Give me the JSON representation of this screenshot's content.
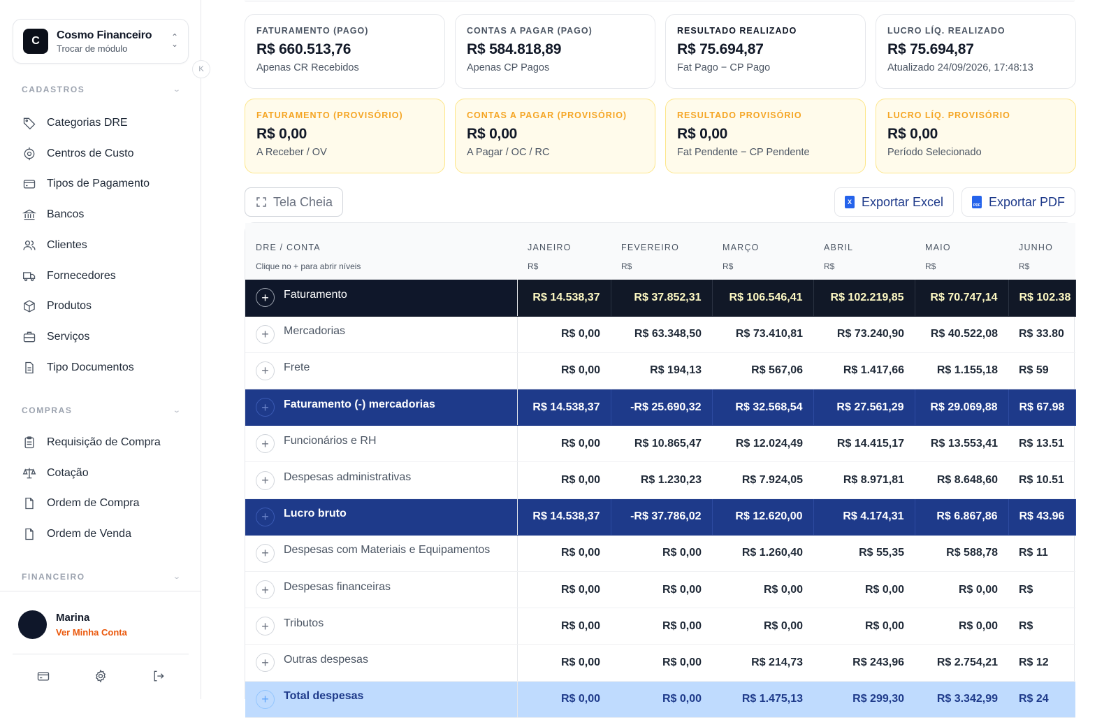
{
  "app": {
    "logo_letter": "C",
    "name": "Cosmo Financeiro",
    "subtitle": "Trocar de módulo",
    "collapse_glyph": "K"
  },
  "sidebar": {
    "sections": [
      {
        "title": "CADASTROS",
        "items": [
          {
            "label": "Categorias DRE",
            "icon": "tag-icon"
          },
          {
            "label": "Centros de Custo",
            "icon": "target-icon"
          },
          {
            "label": "Tipos de Pagamento",
            "icon": "credit-card-icon"
          },
          {
            "label": "Bancos",
            "icon": "bank-icon"
          },
          {
            "label": "Clientes",
            "icon": "users-icon"
          },
          {
            "label": "Fornecedores",
            "icon": "truck-icon"
          },
          {
            "label": "Produtos",
            "icon": "box-icon"
          },
          {
            "label": "Serviços",
            "icon": "briefcase-icon"
          },
          {
            "label": "Tipo Documentos",
            "icon": "document-icon"
          }
        ]
      },
      {
        "title": "COMPRAS",
        "items": [
          {
            "label": "Requisição de Compra",
            "icon": "clipboard-icon"
          },
          {
            "label": "Cotação",
            "icon": "scale-icon"
          },
          {
            "label": "Ordem de Compra",
            "icon": "file-icon"
          },
          {
            "label": "Ordem de Venda",
            "icon": "file-icon"
          }
        ]
      },
      {
        "title": "FINANCEIRO",
        "items": []
      }
    ]
  },
  "user": {
    "name": "Marina",
    "link": "Ver Minha Conta"
  },
  "cards": [
    {
      "label": "FATURAMENTO (PAGO)",
      "value": "R$ 660.513,76",
      "sub": "Apenas CR Recebidos"
    },
    {
      "label": "CONTAS A PAGAR (PAGO)",
      "value": "R$ 584.818,89",
      "sub": "Apenas CP Pagos"
    },
    {
      "label": "RESULTADO REALIZADO",
      "value": "R$ 75.694,87",
      "sub": "Fat Pago − CP Pago"
    },
    {
      "label": "LUCRO LÍQ. REALIZADO",
      "value": "R$ 75.694,87",
      "sub": "Atualizado 24/09/2026, 17:48:13"
    },
    {
      "label": "FATURAMENTO (PROVISÓRIO)",
      "value": "R$ 0,00",
      "sub": "A Receber / OV"
    },
    {
      "label": "CONTAS A PAGAR (PROVISÓRIO)",
      "value": "R$ 0,00",
      "sub": "A Pagar / OC / RC"
    },
    {
      "label": "RESULTADO PROVISÓRIO",
      "value": "R$ 0,00",
      "sub": "Fat Pendente − CP Pendente"
    },
    {
      "label": "LUCRO LÍQ. PROVISÓRIO",
      "value": "R$ 0,00",
      "sub": "Período Selecionado"
    }
  ],
  "toolbar": {
    "fullscreen": "Tela Cheia",
    "export_excel": "Exportar Excel",
    "export_pdf": "Exportar PDF",
    "excel_glyph": "X",
    "pdf_glyph": "PDF"
  },
  "table": {
    "header": {
      "first": "DRE / CONTA",
      "first_sub": "Clique no + para abrir níveis",
      "currency": "R$"
    },
    "months": [
      "JANEIRO",
      "FEVEREIRO",
      "MARÇO",
      "ABRIL",
      "MAIO",
      "JUNHO"
    ],
    "rows": [
      {
        "label": "Faturamento",
        "style": "dark",
        "values": [
          "R$ 14.538,37",
          "R$ 37.852,31",
          "R$ 106.546,41",
          "R$ 102.219,85",
          "R$ 70.747,14",
          "R$ 102.38"
        ]
      },
      {
        "label": "Mercadorias",
        "style": "plain",
        "values": [
          "R$ 0,00",
          "R$ 63.348,50",
          "R$ 73.410,81",
          "R$ 73.240,90",
          "R$ 40.522,08",
          "R$ 33.80"
        ]
      },
      {
        "label": "Frete",
        "style": "plain",
        "values": [
          "R$ 0,00",
          "R$ 194,13",
          "R$ 567,06",
          "R$ 1.417,66",
          "R$ 1.155,18",
          "R$ 59"
        ]
      },
      {
        "label": "Faturamento (-) mercadorias",
        "style": "navy",
        "values": [
          "R$ 14.538,37",
          "-R$ 25.690,32",
          "R$ 32.568,54",
          "R$ 27.561,29",
          "R$ 29.069,88",
          "R$ 67.98"
        ]
      },
      {
        "label": "Funcionários e RH",
        "style": "plain",
        "values": [
          "R$ 0,00",
          "R$ 10.865,47",
          "R$ 12.024,49",
          "R$ 14.415,17",
          "R$ 13.553,41",
          "R$ 13.51"
        ]
      },
      {
        "label": "Despesas administrativas",
        "style": "plain",
        "values": [
          "R$ 0,00",
          "R$ 1.230,23",
          "R$ 7.924,05",
          "R$ 8.971,81",
          "R$ 8.648,60",
          "R$ 10.51"
        ]
      },
      {
        "label": "Lucro bruto",
        "style": "navy",
        "values": [
          "R$ 14.538,37",
          "-R$ 37.786,02",
          "R$ 12.620,00",
          "R$ 4.174,31",
          "R$ 6.867,86",
          "R$ 43.96"
        ]
      },
      {
        "label": "Despesas com Materiais e Equipamentos",
        "style": "plain",
        "values": [
          "R$ 0,00",
          "R$ 0,00",
          "R$ 1.260,40",
          "R$ 55,35",
          "R$ 588,78",
          "R$ 11"
        ]
      },
      {
        "label": "Despesas financeiras",
        "style": "plain",
        "values": [
          "R$ 0,00",
          "R$ 0,00",
          "R$ 0,00",
          "R$ 0,00",
          "R$ 0,00",
          "R$"
        ]
      },
      {
        "label": "Tributos",
        "style": "plain",
        "values": [
          "R$ 0,00",
          "R$ 0,00",
          "R$ 0,00",
          "R$ 0,00",
          "R$ 0,00",
          "R$"
        ]
      },
      {
        "label": "Outras despesas",
        "style": "plain",
        "values": [
          "R$ 0,00",
          "R$ 0,00",
          "R$ 214,73",
          "R$ 243,96",
          "R$ 2.754,21",
          "R$ 12"
        ]
      },
      {
        "label": "Total despesas",
        "style": "light",
        "values": [
          "R$ 0,00",
          "R$ 0,00",
          "R$ 1.475,13",
          "R$ 299,30",
          "R$ 3.342,99",
          "R$ 24"
        ]
      }
    ]
  },
  "colors": {
    "dark_row": "#111827",
    "navy_row": "#1e3a8a",
    "light_row": "#bfdbfe",
    "provisional_accent": "#f5a524",
    "user_link": "#ea580c"
  }
}
